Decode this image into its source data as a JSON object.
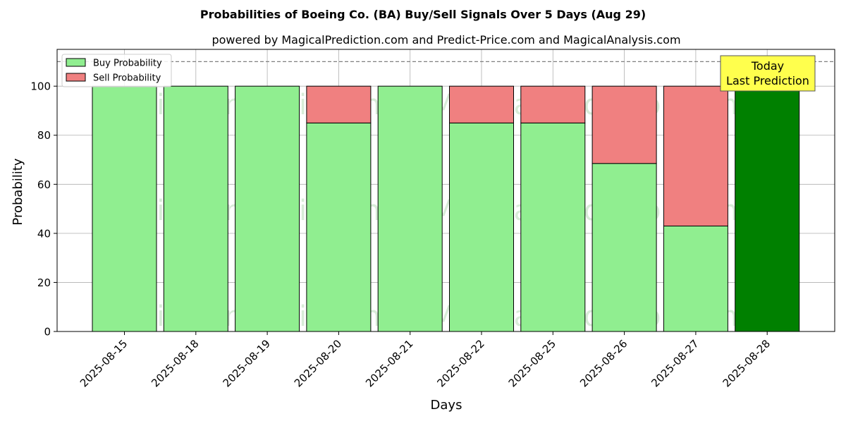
{
  "chart_data": {
    "type": "bar",
    "title": "Probabilities of Boeing Co. (BA) Buy/Sell Signals Over 5 Days (Aug 29)",
    "subtitle": "powered by MagicalPrediction.com and Predict-Price.com and MagicalAnalysis.com",
    "xlabel": "Days",
    "ylabel": "Probability",
    "ylim": [
      0,
      115
    ],
    "yticks": [
      0,
      20,
      40,
      60,
      80,
      100
    ],
    "grid": true,
    "legend_placement": "top-left",
    "categories": [
      "2025-08-15",
      "2025-08-18",
      "2025-08-19",
      "2025-08-20",
      "2025-08-21",
      "2025-08-22",
      "2025-08-25",
      "2025-08-26",
      "2025-08-27",
      "2025-08-28"
    ],
    "series": [
      {
        "name": "Buy Probability",
        "values": [
          100,
          100,
          100,
          85,
          100,
          85,
          85,
          68.5,
          43,
          100
        ],
        "color": "#90ee90"
      },
      {
        "name": "Sell Probability",
        "values": [
          0,
          0,
          0,
          15,
          0,
          15,
          15,
          31.5,
          57,
          0
        ],
        "color": "#f08080"
      }
    ],
    "highlight": {
      "category": "2025-08-28",
      "color": "#008000"
    },
    "reference_line": {
      "y": 110,
      "style": "dashed",
      "color": "#808080"
    },
    "annotation": {
      "lines": [
        "Today",
        "Last Prediction"
      ],
      "background": "#ffff4d"
    },
    "watermarks": [
      "MagicalAnalysis.com",
      "MagicalPrediction.com"
    ]
  }
}
